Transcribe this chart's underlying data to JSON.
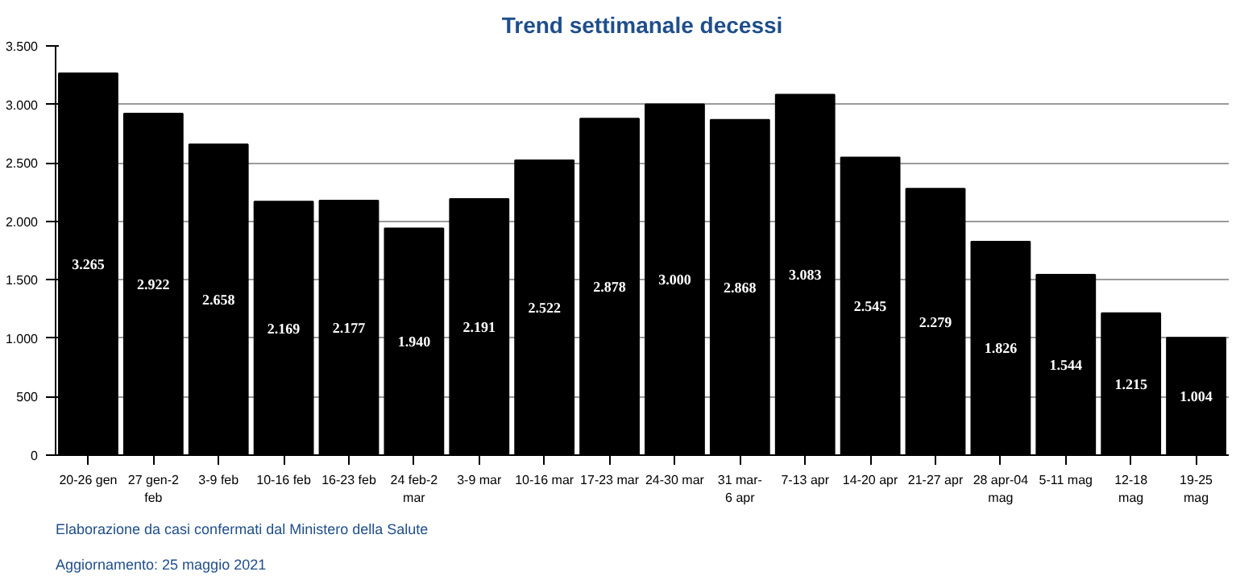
{
  "chart_data": {
    "type": "bar",
    "title": "Trend settimanale decessi",
    "categories": [
      "20-26 gen",
      "27 gen-2\nfeb",
      "3-9 feb",
      "10-16 feb",
      "16-23 feb",
      "24 feb-2\nmar",
      "3-9 mar",
      "10-16 mar",
      "17-23 mar",
      "24-30 mar",
      "31 mar-\n6 apr",
      "7-13 apr",
      "14-20 apr",
      "21-27 apr",
      "28 apr-04\nmag",
      "5-11 mag",
      "12-18\nmag",
      "19-25\nmag"
    ],
    "values": [
      3265,
      2922,
      2658,
      2169,
      2177,
      1940,
      2191,
      2522,
      2878,
      3000,
      2868,
      3083,
      2545,
      2279,
      1826,
      1544,
      1215,
      1004
    ],
    "value_labels": [
      "3.265",
      "2.922",
      "2.658",
      "2.169",
      "2.177",
      "1.940",
      "2.191",
      "2.522",
      "2.878",
      "3.000",
      "2.868",
      "3.083",
      "2.545",
      "2.279",
      "1.826",
      "1.544",
      "1.215",
      "1.004"
    ],
    "color": "#000000",
    "ylim": [
      0,
      3500
    ],
    "yticks": [
      0,
      {
        "value": 500,
        "label": "500"
      },
      {
        "value": 1000,
        "label": "1.000"
      },
      {
        "value": 1500,
        "label": "1.500"
      },
      {
        "value": 2000,
        "label": "2.000"
      },
      {
        "value": 2500,
        "label": "2.500"
      },
      {
        "value": 3000,
        "label": "3.000"
      },
      {
        "value": 3500,
        "label": "3.500"
      }
    ],
    "grid": "y",
    "annotations": [
      "Elaborazione da casi confermati dal Ministero della Salute",
      "Aggiornamento: 25 maggio 2021"
    ]
  }
}
